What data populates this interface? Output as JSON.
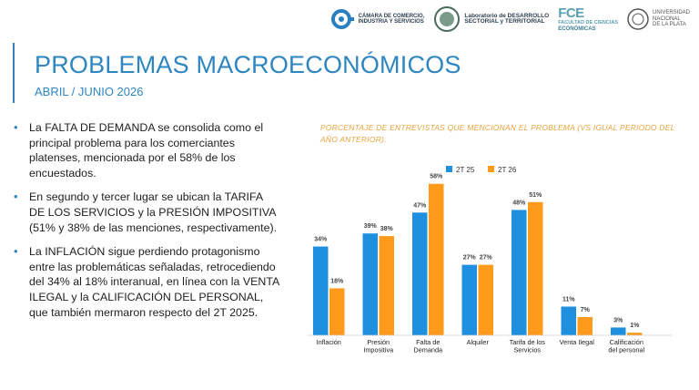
{
  "header": {
    "logos": [
      {
        "name": "camara-comercio",
        "text": [
          "CÁMARA DE COMERCIO,",
          "INDUSTRIA Y SERVICIOS"
        ]
      },
      {
        "name": "laboratorio",
        "badge": "10 AÑOS",
        "text": [
          "Laboratorio de DESARROLLO",
          "SECTORIAL y TERRITORIAL"
        ]
      },
      {
        "name": "fce",
        "mark": "FCE",
        "text": [
          "FACULTAD DE CIENCIAS",
          "ECONÓMICAS"
        ]
      },
      {
        "name": "unlp",
        "text": [
          "UNIVERSIDAD",
          "NACIONAL",
          "DE LA PLATA"
        ]
      }
    ]
  },
  "title": "PROBLEMAS MACROECONÓMICOS",
  "subtitle": "ABRIL / JUNIO 2026",
  "bullets": [
    "La FALTA DE DEMANDA se consolida como el principal problema para los comerciantes platenses, mencionada por el 58% de los encuestados.",
    "En segundo y tercer lugar se ubican la TARIFA DE LOS SERVICIOS y la PRESIÓN IMPOSITIVA (51% y 38% de las menciones, respectivamente).",
    "La INFLACIÓN sigue perdiendo protagonismo entre las problemáticas señaladas, retrocediendo del 34% al 18% interanual, en línea con la VENTA ILEGAL y la CALIFICACIÓN DEL PERSONAL, que también mermaron respecto del 2T 2025."
  ],
  "chart_note": "PORCENTAJE DE ENTREVISTAS QUE MENCIONAN EL PROBLEMA (VS IGUAL PERIODO DEL AÑO ANTERIOR).",
  "colors": {
    "accent": "#2e86c1",
    "series1": "#1f8fe0",
    "series2": "#ff9a1a",
    "note": "#e8a23b"
  },
  "chart_data": {
    "type": "bar",
    "categories": [
      [
        "Inflación"
      ],
      [
        "Presión",
        "Impositiva"
      ],
      [
        "Falta de",
        "Demanda"
      ],
      [
        "Alquiler"
      ],
      [
        "Tarifa de los",
        "Servicios"
      ],
      [
        "Venta Ilegal"
      ],
      [
        "Calificación",
        "del personal"
      ]
    ],
    "series": [
      {
        "name": "2T 25",
        "values": [
          34,
          39,
          47,
          27,
          48,
          11,
          3
        ]
      },
      {
        "name": "2T 26",
        "values": [
          18,
          38,
          58,
          27,
          51,
          7,
          1
        ]
      }
    ],
    "value_suffix": "%",
    "ylim": [
      0,
      60
    ],
    "legend": "top",
    "grid": false
  }
}
